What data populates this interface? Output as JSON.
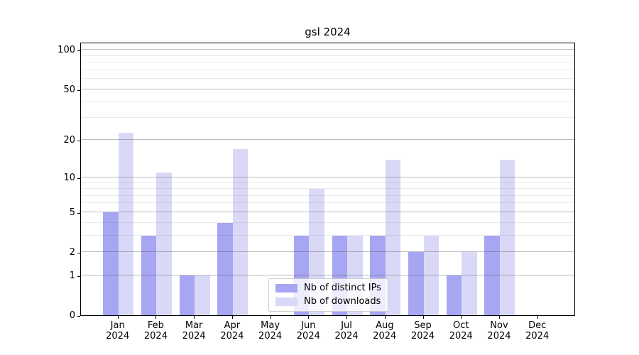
{
  "title": "gsl 2024",
  "legend": {
    "items": [
      {
        "label": "Nb of distinct IPs",
        "color": "#a6a6f2"
      },
      {
        "label": "Nb of downloads",
        "color": "#d9d9f7"
      }
    ]
  },
  "y_axis": {
    "tick_labels": [
      "100",
      "50",
      "20",
      "10",
      "5",
      "2",
      "1",
      "0"
    ],
    "tick_values": [
      100,
      50,
      20,
      10,
      5,
      2,
      1,
      0
    ]
  },
  "x_axis": {
    "tick_labels": [
      "Jan 2024",
      "Feb 2024",
      "Mar 2024",
      "Apr 2024",
      "May 2024",
      "Jun 2024",
      "Jul 2024",
      "Aug 2024",
      "Sep 2024",
      "Oct 2024",
      "Nov 2024",
      "Dec 2024"
    ]
  },
  "colors": {
    "bar_dark": "#a6a6f2",
    "bar_light": "#d9d9f7",
    "grid_major": "#b2b2b2",
    "grid_minor": "#e8e8e8",
    "axis": "#000000"
  },
  "chart_data": {
    "type": "bar",
    "title": "gsl 2024",
    "categories": [
      "Jan 2024",
      "Feb 2024",
      "Mar 2024",
      "Apr 2024",
      "May 2024",
      "Jun 2024",
      "Jul 2024",
      "Aug 2024",
      "Sep 2024",
      "Oct 2024",
      "Nov 2024",
      "Dec 2024"
    ],
    "series": [
      {
        "name": "Nb of distinct IPs",
        "color": "#a6a6f2",
        "values": [
          5,
          3,
          1,
          4,
          0,
          3,
          3,
          3,
          2,
          1,
          3,
          0
        ]
      },
      {
        "name": "Nb of downloads",
        "color": "#d9d9f7",
        "values": [
          23,
          11,
          1,
          17,
          0,
          8,
          3,
          14,
          3,
          2,
          14,
          0
        ]
      }
    ],
    "xlabel": "",
    "ylabel": "",
    "yscale": "log1p",
    "ylim": [
      0,
      115
    ],
    "ytick_values": [
      0,
      1,
      2,
      5,
      10,
      20,
      50,
      100
    ],
    "major_gridlines": [
      1,
      2,
      5,
      10,
      20,
      50,
      100
    ],
    "minor_gridlines": [
      3,
      4,
      6,
      7,
      8,
      9,
      30,
      40,
      60,
      70,
      80,
      90
    ],
    "grid": true,
    "legend_position": "lower center"
  }
}
